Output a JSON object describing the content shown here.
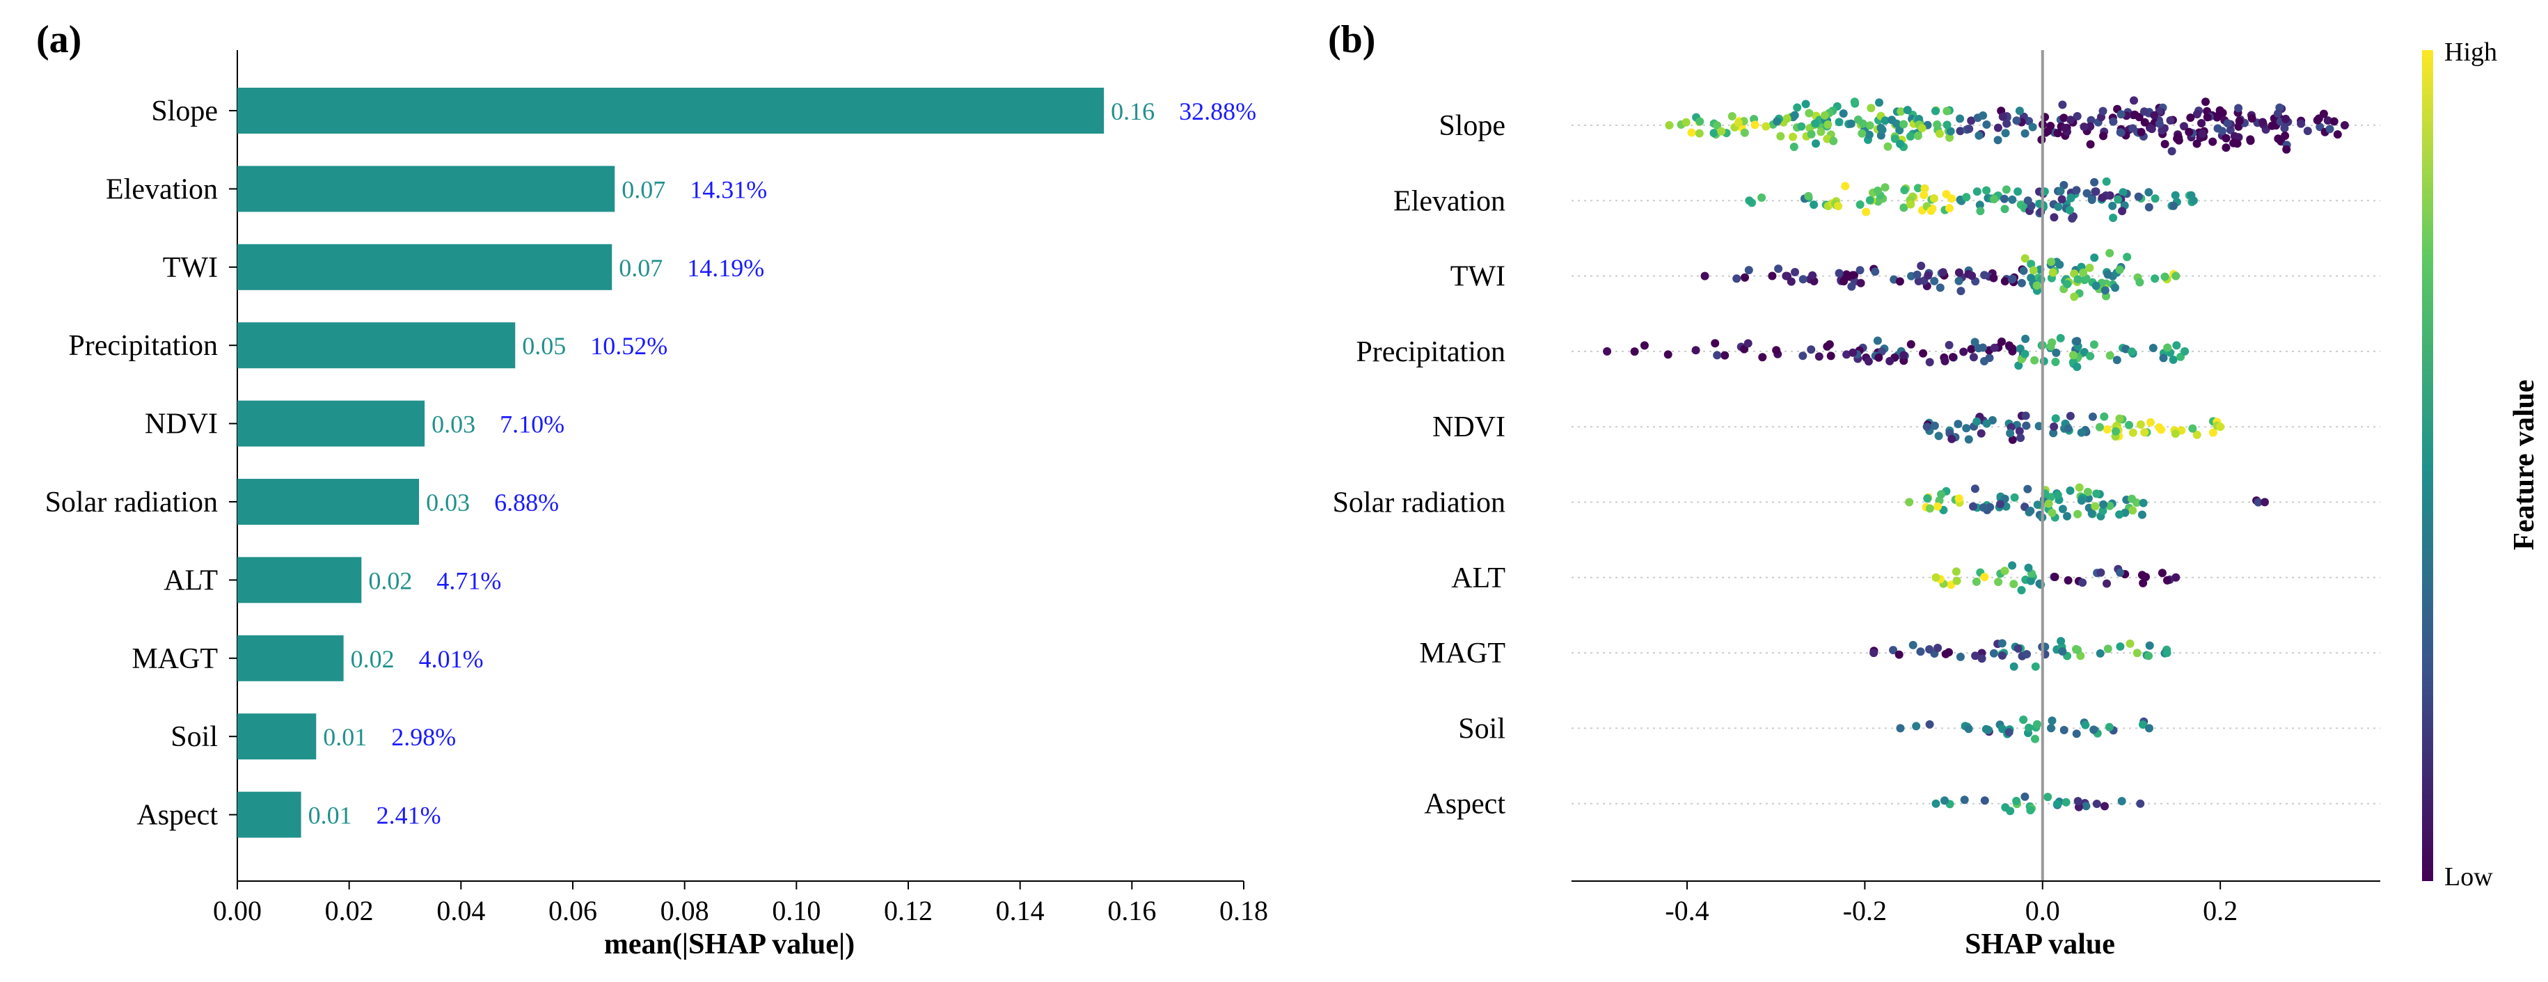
{
  "chart_data": [
    {
      "panel": "(a)",
      "type": "bar",
      "orientation": "horizontal",
      "categories": [
        "Slope",
        "Elevation",
        "TWI",
        "Precipitation",
        "NDVI",
        "Solar radiation",
        "ALT",
        "MAGT",
        "Soil",
        "Aspect"
      ],
      "values": [
        0.155,
        0.0675,
        0.067,
        0.0497,
        0.0335,
        0.0325,
        0.0222,
        0.019,
        0.0141,
        0.0114
      ],
      "value_labels": [
        "0.16",
        "0.07",
        "0.07",
        "0.05",
        "0.03",
        "0.03",
        "0.02",
        "0.02",
        "0.01",
        "0.01"
      ],
      "percent_labels": [
        "32.88%",
        "14.31%",
        "14.19%",
        "10.52%",
        "7.10%",
        "6.88%",
        "4.71%",
        "4.01%",
        "2.98%",
        "2.41%"
      ],
      "xlabel": "mean(|SHAP value|)",
      "ylabel": "",
      "xlim": [
        0,
        0.18
      ],
      "xticks": [
        0,
        0.02,
        0.04,
        0.06,
        0.08,
        0.1,
        0.12,
        0.14,
        0.16,
        0.18
      ],
      "xtick_labels": [
        "0.00",
        "0.02",
        "0.04",
        "0.06",
        "0.08",
        "0.10",
        "0.12",
        "0.14",
        "0.16",
        "0.18"
      ],
      "bar_color": "#21918c",
      "value_label_color": "#21918c",
      "percent_label_color": "#1a1aff"
    },
    {
      "panel": "(b)",
      "type": "scatter",
      "subtype": "beeswarm",
      "categories": [
        "Slope",
        "Elevation",
        "TWI",
        "Precipitation",
        "NDVI",
        "Solar radiation",
        "ALT",
        "MAGT",
        "Soil",
        "Aspect"
      ],
      "xlabel": "SHAP value",
      "xlim": [
        -0.53,
        0.38
      ],
      "xticks": [
        -0.4,
        -0.2,
        0.0,
        0.2
      ],
      "xtick_labels": [
        "-0.4",
        "-0.2",
        "0.0",
        "0.2"
      ],
      "colorbar": {
        "title": "Feature value",
        "high_label": "High",
        "low_label": "Low",
        "colormap": "viridis"
      },
      "series": [
        {
          "name": "Slope",
          "min": -0.42,
          "max": 0.34,
          "segments": [
            {
              "from": -0.42,
              "to": -0.3,
              "density": 0.35,
              "feature": 0.85
            },
            {
              "from": -0.3,
              "to": -0.1,
              "density": 0.85,
              "feature": 0.65
            },
            {
              "from": -0.1,
              "to": 0.0,
              "density": 0.45,
              "feature": 0.2
            },
            {
              "from": 0.0,
              "to": 0.1,
              "density": 0.7,
              "feature": 0.05
            },
            {
              "from": 0.1,
              "to": 0.28,
              "density": 1.0,
              "feature": 0.03
            },
            {
              "from": 0.28,
              "to": 0.34,
              "density": 0.35,
              "feature": 0.03
            }
          ]
        },
        {
          "name": "Elevation",
          "min": -0.33,
          "max": 0.17,
          "segments": [
            {
              "from": -0.33,
              "to": -0.25,
              "density": 0.12,
              "feature": 0.6
            },
            {
              "from": -0.25,
              "to": -0.1,
              "density": 0.45,
              "feature": 0.9
            },
            {
              "from": -0.1,
              "to": -0.02,
              "density": 0.4,
              "feature": 0.55
            },
            {
              "from": -0.02,
              "to": 0.1,
              "density": 0.7,
              "feature": 0.35
            },
            {
              "from": 0.1,
              "to": 0.17,
              "density": 0.3,
              "feature": 0.5
            }
          ]
        },
        {
          "name": "TWI",
          "min": -0.38,
          "max": 0.15,
          "segments": [
            {
              "from": -0.38,
              "to": -0.3,
              "density": 0.08,
              "feature": 0.03
            },
            {
              "from": -0.3,
              "to": -0.15,
              "density": 0.3,
              "feature": 0.05
            },
            {
              "from": -0.15,
              "to": -0.02,
              "density": 0.45,
              "feature": 0.15
            },
            {
              "from": -0.02,
              "to": 0.1,
              "density": 0.8,
              "feature": 0.62
            },
            {
              "from": 0.1,
              "to": 0.15,
              "density": 0.2,
              "feature": 0.75
            }
          ]
        },
        {
          "name": "Precipitation",
          "min": -0.49,
          "max": 0.16,
          "segments": [
            {
              "from": -0.49,
              "to": -0.38,
              "density": 0.06,
              "feature": 0.03
            },
            {
              "from": -0.38,
              "to": -0.2,
              "density": 0.2,
              "feature": 0.05
            },
            {
              "from": -0.2,
              "to": -0.03,
              "density": 0.4,
              "feature": 0.12
            },
            {
              "from": -0.03,
              "to": 0.05,
              "density": 0.6,
              "feature": 0.55
            },
            {
              "from": 0.05,
              "to": 0.16,
              "density": 0.25,
              "feature": 0.6
            }
          ]
        },
        {
          "name": "NDVI",
          "min": -0.13,
          "max": 0.2,
          "segments": [
            {
              "from": -0.13,
              "to": -0.02,
              "density": 0.45,
              "feature": 0.25
            },
            {
              "from": -0.02,
              "to": 0.06,
              "density": 0.35,
              "feature": 0.35
            },
            {
              "from": 0.06,
              "to": 0.2,
              "density": 0.35,
              "feature": 0.93
            }
          ]
        },
        {
          "name": "Solar radiation",
          "min": -0.15,
          "max": 0.25,
          "segments": [
            {
              "from": -0.15,
              "to": -0.08,
              "density": 0.3,
              "feature": 0.8
            },
            {
              "from": -0.08,
              "to": -0.01,
              "density": 0.45,
              "feature": 0.4
            },
            {
              "from": -0.01,
              "to": 0.12,
              "density": 0.6,
              "feature": 0.6
            },
            {
              "from": 0.24,
              "to": 0.25,
              "density": 0.05,
              "feature": 0.05
            }
          ]
        },
        {
          "name": "ALT",
          "min": -0.12,
          "max": 0.15,
          "segments": [
            {
              "from": -0.12,
              "to": -0.05,
              "density": 0.2,
              "feature": 0.9
            },
            {
              "from": -0.05,
              "to": 0.0,
              "density": 0.45,
              "feature": 0.6
            },
            {
              "from": 0.0,
              "to": 0.15,
              "density": 0.2,
              "feature": 0.05
            }
          ]
        },
        {
          "name": "MAGT",
          "min": -0.19,
          "max": 0.14,
          "segments": [
            {
              "from": -0.19,
              "to": -0.05,
              "density": 0.2,
              "feature": 0.1
            },
            {
              "from": -0.05,
              "to": 0.03,
              "density": 0.4,
              "feature": 0.4
            },
            {
              "from": 0.03,
              "to": 0.14,
              "density": 0.2,
              "feature": 0.6
            }
          ]
        },
        {
          "name": "Soil",
          "min": -0.16,
          "max": 0.12,
          "segments": [
            {
              "from": -0.16,
              "to": -0.05,
              "density": 0.12,
              "feature": 0.35
            },
            {
              "from": -0.05,
              "to": 0.03,
              "density": 0.3,
              "feature": 0.45
            },
            {
              "from": 0.03,
              "to": 0.12,
              "density": 0.2,
              "feature": 0.4
            }
          ]
        },
        {
          "name": "Aspect",
          "min": -0.12,
          "max": 0.11,
          "segments": [
            {
              "from": -0.12,
              "to": -0.04,
              "density": 0.1,
              "feature": 0.5
            },
            {
              "from": -0.04,
              "to": 0.03,
              "density": 0.3,
              "feature": 0.55
            },
            {
              "from": 0.03,
              "to": 0.11,
              "density": 0.15,
              "feature": 0.2
            }
          ]
        }
      ]
    }
  ]
}
